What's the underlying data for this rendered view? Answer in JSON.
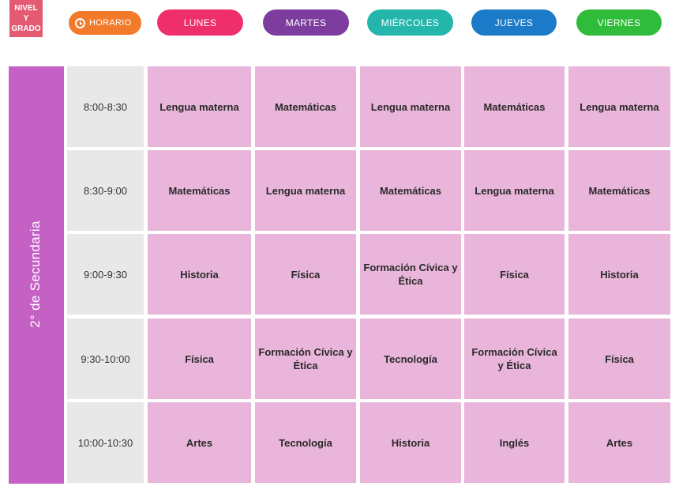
{
  "header": {
    "nivel_lines": [
      "NIVEL",
      "Y",
      "GRADO"
    ],
    "horario_label": "HORARIO",
    "horario_icon": "clock-icon",
    "days": [
      {
        "key": "lunes",
        "label": "LUNES",
        "color": "#ef2f6c"
      },
      {
        "key": "martes",
        "label": "MARTES",
        "color": "#7c3d9e"
      },
      {
        "key": "miercoles",
        "label": "MIÉRCOLES",
        "color": "#24b5ab"
      },
      {
        "key": "jueves",
        "label": "JUEVES",
        "color": "#1c7bc8"
      },
      {
        "key": "viernes",
        "label": "VIERNES",
        "color": "#2fbc3a"
      }
    ]
  },
  "grade": {
    "label": "2° de Secundaria",
    "color": "#c561c4"
  },
  "schedule": [
    {
      "time": "8:00-8:30",
      "subjects": [
        "Lengua materna",
        "Matemáticas",
        "Lengua materna",
        "Matemáticas",
        "Lengua materna"
      ]
    },
    {
      "time": "8:30-9:00",
      "subjects": [
        "Matemáticas",
        "Lengua materna",
        "Matemáticas",
        "Lengua materna",
        "Matemáticas"
      ]
    },
    {
      "time": "9:00-9:30",
      "subjects": [
        "Historia",
        "Física",
        "Formación Cívica y Ética",
        "Física",
        "Historia"
      ]
    },
    {
      "time": "9:30-10:00",
      "subjects": [
        "Física",
        "Formación Cívica y Ética",
        "Tecnología",
        "Formación Cívica y Ética",
        "Física"
      ]
    },
    {
      "time": "10:00-10:30",
      "subjects": [
        "Artes",
        "Tecnología",
        "Historia",
        "Inglés",
        "Artes"
      ]
    }
  ],
  "colors": {
    "nivel_box": "#e45a72",
    "horario_pill": "#f37a2a",
    "time_cell": "#e8e8e8",
    "subject_cell": "#e9b5da"
  }
}
